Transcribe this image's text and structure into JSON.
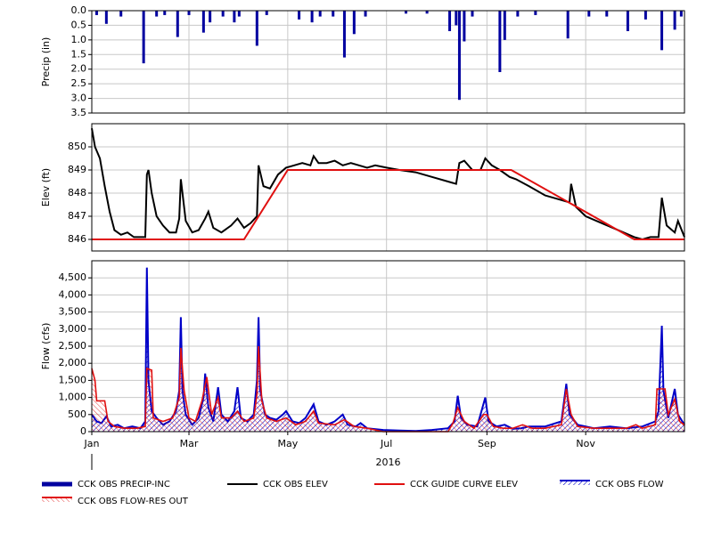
{
  "chart_data": [
    {
      "type": "bar",
      "ylabel": "Precip (in)",
      "y_inverted": true,
      "grid": true,
      "ylim": [
        0,
        3.5
      ],
      "yticks": [
        {
          "value": 0,
          "label": "0.0"
        },
        0.5,
        {
          "value": 1,
          "label": "1.0"
        },
        1.5,
        {
          "value": 2,
          "label": "2.0"
        },
        2.5,
        {
          "value": 3,
          "label": "3.0"
        },
        3.5
      ],
      "series": [
        {
          "name": "CCK OBS PRECIP-INC",
          "color": "#0000a0",
          "x": [
            3,
            9,
            18,
            32,
            40,
            45,
            53,
            60,
            69,
            73,
            81,
            88,
            91,
            102,
            108,
            128,
            136,
            141,
            149,
            156,
            162,
            169,
            194,
            207,
            221,
            225,
            227,
            230,
            235,
            252,
            255,
            263,
            274,
            294,
            307,
            318,
            331,
            342,
            352,
            360,
            364
          ],
          "values": [
            0.15,
            0.45,
            0.2,
            1.8,
            0.2,
            0.15,
            0.9,
            0.15,
            0.75,
            0.4,
            0.2,
            0.4,
            0.2,
            1.2,
            0.15,
            0.3,
            0.4,
            0.2,
            0.2,
            1.6,
            0.8,
            0.2,
            0.1,
            0.1,
            0.7,
            0.5,
            3.05,
            1.05,
            0.2,
            2.1,
            1.0,
            0.2,
            0.15,
            0.95,
            0.2,
            0.2,
            0.7,
            0.3,
            1.35,
            0.65,
            0.2
          ]
        }
      ]
    },
    {
      "type": "line",
      "ylabel": "Elev (ft)",
      "grid": true,
      "ylim": [
        845.5,
        851
      ],
      "yticks": [
        846,
        847,
        848,
        849,
        850
      ],
      "series": [
        {
          "name": "CCK OBS ELEV",
          "color": "#000000",
          "x": [
            0,
            2,
            5,
            8,
            11,
            14,
            18,
            22,
            26,
            30,
            33,
            34,
            35,
            37,
            40,
            44,
            48,
            52,
            54,
            55,
            58,
            62,
            66,
            70,
            72,
            75,
            80,
            86,
            90,
            94,
            98,
            102,
            103,
            106,
            110,
            115,
            120,
            125,
            130,
            135,
            137,
            140,
            145,
            150,
            155,
            160,
            165,
            170,
            175,
            182,
            190,
            200,
            210,
            220,
            225,
            227,
            230,
            235,
            240,
            243,
            247,
            252,
            258,
            262,
            270,
            280,
            290,
            295,
            296,
            299,
            305,
            315,
            325,
            335,
            340,
            345,
            350,
            352,
            355,
            360,
            362,
            366
          ],
          "values": [
            850.8,
            850.0,
            849.5,
            848.3,
            847.2,
            846.4,
            846.2,
            846.3,
            846.1,
            846.1,
            846.1,
            848.8,
            849.0,
            848.0,
            847.0,
            846.6,
            846.3,
            846.3,
            846.9,
            848.6,
            846.8,
            846.3,
            846.4,
            846.9,
            847.2,
            846.5,
            846.3,
            846.6,
            846.9,
            846.5,
            846.7,
            847.0,
            849.2,
            848.3,
            848.2,
            848.8,
            849.1,
            849.2,
            849.3,
            849.2,
            849.6,
            849.3,
            849.3,
            849.4,
            849.2,
            849.3,
            849.2,
            849.1,
            849.2,
            849.1,
            849.0,
            848.9,
            848.7,
            848.5,
            848.4,
            849.3,
            849.4,
            849.0,
            849.0,
            849.5,
            849.2,
            849.0,
            848.7,
            848.6,
            848.3,
            847.9,
            847.7,
            847.6,
            848.4,
            847.4,
            847.0,
            846.7,
            846.4,
            846.1,
            846.0,
            846.1,
            846.1,
            847.8,
            846.6,
            846.3,
            846.8,
            846.1
          ]
        },
        {
          "name": "CCK GUIDE CURVE ELEV",
          "color": "#e01010",
          "x": [
            0,
            94,
            121,
            259,
            335,
            366
          ],
          "values": [
            846,
            846,
            849,
            849,
            846,
            846
          ]
        }
      ]
    },
    {
      "type": "area",
      "ylabel": "Flow (cfs)",
      "xlabel": "2016",
      "grid": true,
      "xlim": [
        0,
        366
      ],
      "xticks": [
        {
          "value": 0,
          "label": "Jan"
        },
        {
          "value": 60,
          "label": "Mar"
        },
        {
          "value": 121,
          "label": "May"
        },
        {
          "value": 182,
          "label": "Jul"
        },
        {
          "value": 244,
          "label": "Sep"
        },
        {
          "value": 305,
          "label": "Nov"
        }
      ],
      "ylim": [
        0,
        5000
      ],
      "yticks": [
        0,
        500,
        {
          "value": 1000,
          "label": "1,000"
        },
        {
          "value": 1500,
          "label": "1,500"
        },
        {
          "value": 2000,
          "label": "2,000"
        },
        {
          "value": 2500,
          "label": "2,500"
        },
        {
          "value": 3000,
          "label": "3,000"
        },
        {
          "value": 3500,
          "label": "3,500"
        },
        {
          "value": 4000,
          "label": "4,000"
        },
        {
          "value": 4500,
          "label": "4,500"
        }
      ],
      "series": [
        {
          "name": "CCK OBS FLOW",
          "color": "#0000c8",
          "x": [
            0,
            3,
            6,
            9,
            12,
            16,
            20,
            25,
            30,
            33,
            34,
            35,
            37,
            40,
            44,
            48,
            52,
            54,
            55,
            56,
            58,
            62,
            66,
            69,
            70,
            72,
            75,
            78,
            80,
            84,
            88,
            90,
            92,
            96,
            100,
            102,
            103,
            104,
            107,
            110,
            114,
            118,
            120,
            124,
            128,
            132,
            137,
            140,
            145,
            150,
            155,
            158,
            163,
            166,
            170,
            180,
            190,
            200,
            210,
            220,
            224,
            226,
            228,
            232,
            238,
            243,
            245,
            250,
            255,
            260,
            265,
            270,
            280,
            290,
            293,
            295,
            300,
            305,
            310,
            320,
            330,
            340,
            348,
            350,
            352,
            353,
            356,
            360,
            362,
            366
          ],
          "values": [
            500,
            300,
            250,
            450,
            150,
            200,
            100,
            150,
            100,
            300,
            4800,
            1500,
            600,
            400,
            200,
            300,
            600,
            1200,
            3350,
            1200,
            500,
            200,
            400,
            1000,
            1700,
            700,
            300,
            1300,
            500,
            300,
            600,
            1300,
            400,
            300,
            500,
            1500,
            3350,
            1200,
            500,
            400,
            350,
            500,
            600,
            300,
            250,
            400,
            800,
            300,
            200,
            300,
            500,
            200,
            150,
            250,
            100,
            50,
            30,
            20,
            50,
            100,
            300,
            1050,
            400,
            200,
            150,
            1000,
            300,
            150,
            200,
            80,
            100,
            150,
            150,
            300,
            1400,
            500,
            200,
            150,
            100,
            150,
            100,
            150,
            300,
            600,
            3100,
            1200,
            400,
            1250,
            500,
            200
          ]
        },
        {
          "name": "CCK OBS FLOW-RES OUT",
          "color": "#e01010",
          "x": [
            0,
            2,
            3,
            8,
            10,
            14,
            20,
            28,
            33,
            34,
            37,
            38,
            44,
            50,
            54,
            55,
            57,
            60,
            64,
            68,
            71,
            74,
            78,
            80,
            86,
            90,
            94,
            100,
            102,
            103,
            105,
            108,
            114,
            120,
            126,
            132,
            137,
            140,
            150,
            156,
            162,
            170,
            180,
            190,
            200,
            210,
            220,
            223,
            226,
            230,
            236,
            242,
            244,
            248,
            254,
            260,
            266,
            272,
            280,
            290,
            293,
            296,
            300,
            310,
            320,
            330,
            336,
            340,
            348,
            349,
            354,
            356,
            360,
            363,
            366
          ],
          "values": [
            1850,
            1500,
            900,
            900,
            300,
            150,
            100,
            100,
            150,
            1850,
            1800,
            400,
            300,
            400,
            1000,
            2450,
            1200,
            400,
            300,
            900,
            1600,
            500,
            1000,
            400,
            400,
            600,
            300,
            400,
            1100,
            2500,
            900,
            400,
            300,
            400,
            200,
            300,
            600,
            250,
            200,
            350,
            150,
            100,
            0,
            0,
            0,
            0,
            0,
            250,
            700,
            300,
            100,
            500,
            500,
            150,
            100,
            100,
            200,
            100,
            100,
            200,
            1250,
            500,
            150,
            100,
            100,
            100,
            200,
            100,
            200,
            1250,
            1250,
            500,
            950,
            300,
            200
          ]
        }
      ]
    }
  ]
}
